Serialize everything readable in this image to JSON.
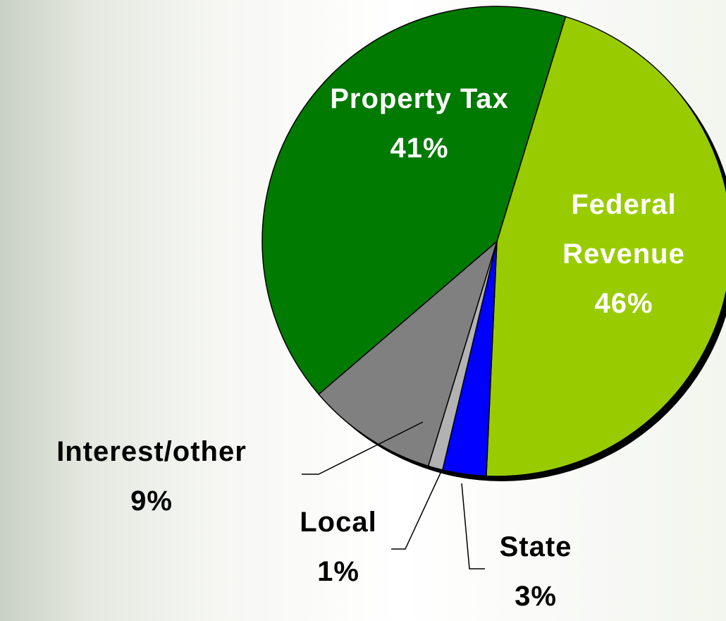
{
  "chart_data": {
    "type": "pie",
    "categories": [
      "Federal Revenue",
      "State",
      "Local",
      "Interest/other",
      "Property Tax"
    ],
    "values": [
      46,
      3,
      1,
      9,
      41
    ],
    "value_labels": [
      "46%",
      "3%",
      "1%",
      "9%",
      "41%"
    ],
    "colors": [
      "#99cc00",
      "#0000ff",
      "#b2b2b2",
      "#808080",
      "#007a00"
    ]
  }
}
